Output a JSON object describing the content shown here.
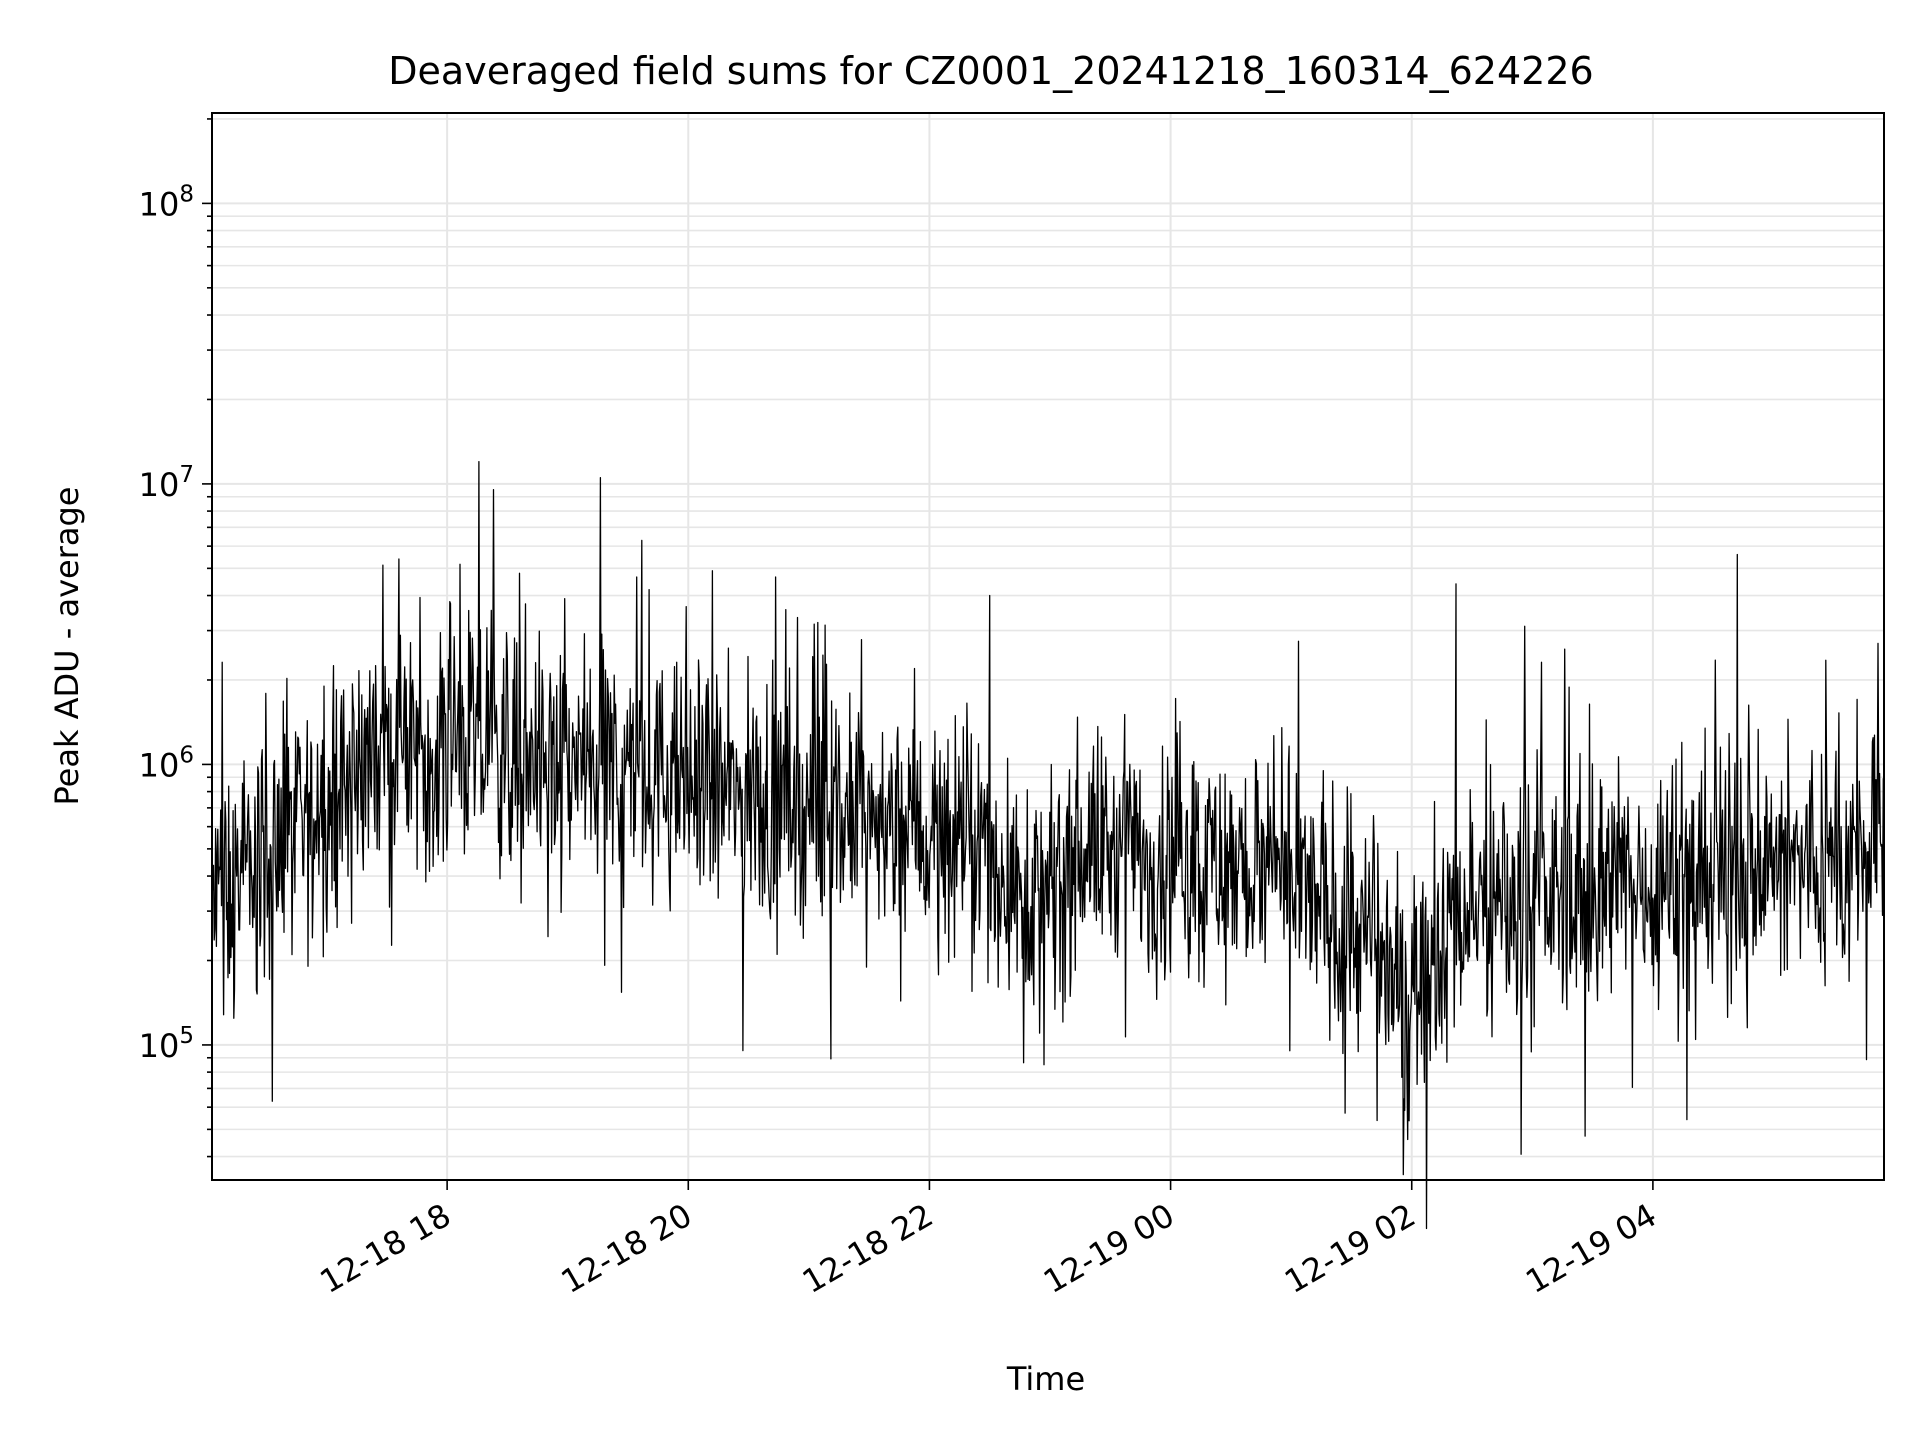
{
  "colors": {
    "background": "#ffffff",
    "line": "#000000",
    "grid": "#e6e6e6",
    "axes": "#000000"
  },
  "chart_data": {
    "type": "line",
    "title": "Deaveraged field sums for CZ0001_20241218_160314_624226",
    "xlabel": "Time",
    "ylabel": "Peak ADU - average",
    "yscale": "log",
    "xlim": [
      "2024-12-18 16:03",
      "2024-12-19 05:55"
    ],
    "ylim": [
      33000,
      210000000
    ],
    "grid": true,
    "x_ticks": [
      {
        "value": "2024-12-18 18:00",
        "label": "12-18 18"
      },
      {
        "value": "2024-12-18 20:00",
        "label": "12-18 20"
      },
      {
        "value": "2024-12-18 22:00",
        "label": "12-18 22"
      },
      {
        "value": "2024-12-19 00:00",
        "label": "12-19 00"
      },
      {
        "value": "2024-12-19 02:00",
        "label": "12-19 02"
      },
      {
        "value": "2024-12-19 04:00",
        "label": "12-19 04"
      }
    ],
    "y_ticks": [
      {
        "value": 100000,
        "base": "10",
        "exp": "5"
      },
      {
        "value": 1000000,
        "base": "10",
        "exp": "6"
      },
      {
        "value": 10000000,
        "base": "10",
        "exp": "7"
      },
      {
        "value": 100000000,
        "base": "10",
        "exp": "8"
      }
    ],
    "series": [
      {
        "x": [
          "2024-12-18 16:03",
          "2024-12-18 16:10",
          "2024-12-18 16:20",
          "2024-12-18 16:30",
          "2024-12-18 16:40",
          "2024-12-18 16:50",
          "2024-12-18 17:00",
          "2024-12-18 17:10",
          "2024-12-18 17:20",
          "2024-12-18 17:30",
          "2024-12-18 17:40",
          "2024-12-18 17:50",
          "2024-12-18 18:00",
          "2024-12-18 18:15",
          "2024-12-18 18:30",
          "2024-12-18 18:45",
          "2024-12-18 19:00",
          "2024-12-18 19:15",
          "2024-12-18 19:30",
          "2024-12-18 19:45",
          "2024-12-18 20:00",
          "2024-12-18 20:15",
          "2024-12-18 20:30",
          "2024-12-18 20:45",
          "2024-12-18 21:00",
          "2024-12-18 21:15",
          "2024-12-18 21:30",
          "2024-12-18 21:45",
          "2024-12-18 22:00",
          "2024-12-18 22:15",
          "2024-12-18 22:30",
          "2024-12-18 22:45",
          "2024-12-18 23:00",
          "2024-12-18 23:15",
          "2024-12-18 23:30",
          "2024-12-18 23:45",
          "2024-12-19 00:00",
          "2024-12-19 00:15",
          "2024-12-19 00:30",
          "2024-12-19 00:45",
          "2024-12-19 01:00",
          "2024-12-19 01:15",
          "2024-12-19 01:30",
          "2024-12-19 01:45",
          "2024-12-19 02:00",
          "2024-12-19 02:15",
          "2024-12-19 02:30",
          "2024-12-19 02:45",
          "2024-12-19 03:00",
          "2024-12-19 03:15",
          "2024-12-19 03:30",
          "2024-12-19 03:45",
          "2024-12-19 04:00",
          "2024-12-19 04:15",
          "2024-12-19 04:30",
          "2024-12-19 04:45",
          "2024-12-19 05:00",
          "2024-12-19 05:15",
          "2024-12-19 05:30",
          "2024-12-19 05:45",
          "2024-12-19 05:55"
        ],
        "y": [
          300000,
          350000,
          400000,
          450000,
          520000,
          600000,
          750000,
          900000,
          1050000,
          1150000,
          1200000,
          1200000,
          1200000,
          1150000,
          1100000,
          1050000,
          1000000,
          1000000,
          950000,
          900000,
          850000,
          800000,
          750000,
          720000,
          680000,
          650000,
          620000,
          600000,
          560000,
          530000,
          480000,
          350000,
          300000,
          520000,
          500000,
          470000,
          460000,
          450000,
          430000,
          400000,
          360000,
          320000,
          260000,
          200000,
          160000,
          250000,
          300000,
          320000,
          330000,
          340000,
          350000,
          370000,
          390000,
          400000,
          410000,
          420000,
          430000,
          440000,
          450000,
          460000,
          480000
        ]
      }
    ],
    "annotations": [
      {
        "x": "2024-12-18 16:33",
        "y": 63000
      },
      {
        "x": "2024-12-18 17:36",
        "y": 5400000
      },
      {
        "x": "2024-12-18 18:36",
        "y": 4800000
      },
      {
        "x": "2024-12-18 20:12",
        "y": 4900000
      },
      {
        "x": "2024-12-18 22:30",
        "y": 4000000
      },
      {
        "x": "2024-12-18 22:57",
        "y": 85000
      },
      {
        "x": "2024-12-19 01:58",
        "y": 46000
      },
      {
        "x": "2024-12-19 02:22",
        "y": 4400000
      },
      {
        "x": "2024-12-19 04:42",
        "y": 5600000
      },
      {
        "x": "2024-12-19 05:52",
        "y": 2700000
      }
    ]
  }
}
